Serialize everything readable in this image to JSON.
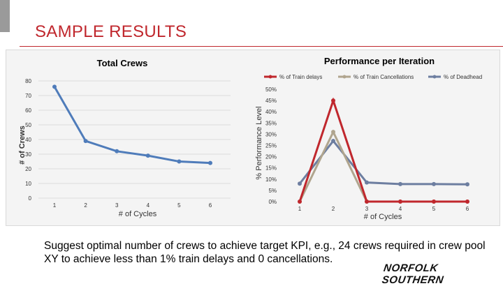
{
  "slide": {
    "title": "SAMPLE RESULTS",
    "caption": "Suggest optimal number of crews to achieve target KPI, e.g., 24 crews required in crew pool XY to achieve less than 1% train delays and 0 cancellations.",
    "logo_text": "NORFOLK SOUTHERN"
  },
  "colors": {
    "title_red": "#c0272d",
    "crews_line": "#4f7cba",
    "delays": "#c0272d",
    "cancellations": "#b0a58e",
    "deadhead": "#6d7ea0"
  },
  "chart_data": [
    {
      "type": "line",
      "title": "Total Crews",
      "xlabel": "# of Cycles",
      "ylabel": "# of Crews",
      "categories": [
        "1",
        "2",
        "3",
        "4",
        "5",
        "6"
      ],
      "yticks": [
        "0",
        "10",
        "20",
        "30",
        "40",
        "50",
        "60",
        "70",
        "80"
      ],
      "ylim": [
        0,
        80
      ],
      "grid": true,
      "series": [
        {
          "values": [
            76,
            39,
            32,
            29,
            25,
            24
          ]
        }
      ]
    },
    {
      "type": "line",
      "title": "Performance per Iteration",
      "xlabel": "# of Cycles",
      "ylabel": "% Performance Level",
      "categories": [
        "1",
        "2",
        "3",
        "4",
        "5",
        "6"
      ],
      "yticks": [
        "0%",
        "5%",
        "10%",
        "15%",
        "20%",
        "25%",
        "30%",
        "35%",
        "40%",
        "45%",
        "50%"
      ],
      "ylim": [
        0,
        50
      ],
      "legend": "top",
      "series": [
        {
          "name": "% of Train delays",
          "values": [
            0,
            45,
            0,
            0,
            0,
            0
          ]
        },
        {
          "name": "% of Train Cancellations",
          "values": [
            0,
            31,
            0,
            0,
            0,
            0
          ]
        },
        {
          "name": "% of Deadhead",
          "values": [
            8,
            27,
            8.5,
            7.8,
            7.8,
            7.7
          ]
        }
      ]
    }
  ]
}
